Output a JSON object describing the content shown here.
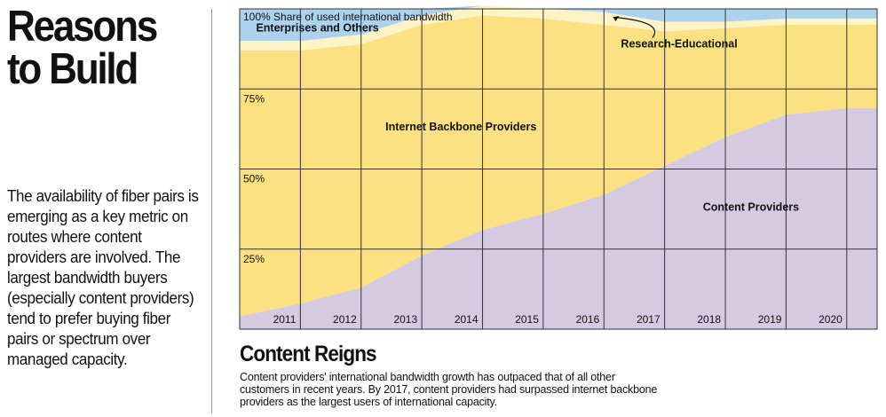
{
  "sidebar": {
    "title": "Reasons\nto Build",
    "body": "The availability of fiber pairs is emerging as a key metric on routes where content providers are involved. The largest bandwidth buyers (especially content providers) tend to prefer buying fiber pairs or spectrum over managed capacity."
  },
  "colors": {
    "content": "#d6cae3",
    "backbone": "#fbe181",
    "research": "#fdf3c4",
    "enterprise": "#acd2ee",
    "grid": "#333333"
  },
  "chart_data": {
    "type": "area",
    "stacked": true,
    "title": "Share of used international bandwidth",
    "x": [
      2011,
      2012,
      2013,
      2014,
      2015,
      2016,
      2017,
      2018,
      2019,
      2020
    ],
    "x_range": [
      2010,
      2020.5
    ],
    "x_label_side": "right-of-column",
    "ylim": [
      0,
      100
    ],
    "y_ticks": [
      {
        "value": 25,
        "label": "25%"
      },
      {
        "value": 50,
        "label": "50%"
      },
      {
        "value": 75,
        "label": "75%"
      },
      {
        "value": 100,
        "label": "100%"
      }
    ],
    "grid": true,
    "series": [
      {
        "name": "Content Providers",
        "color_key": "content",
        "points": [
          [
            2010,
            4
          ],
          [
            2011,
            8
          ],
          [
            2012,
            13
          ],
          [
            2013,
            23
          ],
          [
            2014,
            31
          ],
          [
            2015,
            36
          ],
          [
            2016,
            42
          ],
          [
            2017,
            51
          ],
          [
            2018,
            60
          ],
          [
            2019,
            67
          ],
          [
            2020,
            69
          ]
        ]
      },
      {
        "name": "Internet Backbone Providers",
        "color_key": "backbone",
        "points": [
          [
            2010,
            83
          ],
          [
            2011,
            79
          ],
          [
            2012,
            76
          ],
          [
            2013,
            72
          ],
          [
            2014,
            67
          ],
          [
            2015,
            61
          ],
          [
            2016,
            53
          ],
          [
            2017,
            42
          ],
          [
            2018,
            34
          ],
          [
            2019,
            28
          ],
          [
            2020,
            26
          ]
        ]
      },
      {
        "name": "Research-Educational",
        "color_key": "research",
        "points": [
          [
            2010,
            3
          ],
          [
            2011,
            3
          ],
          [
            2012,
            3
          ],
          [
            2013,
            3
          ],
          [
            2014,
            3
          ],
          [
            2015,
            3
          ],
          [
            2016,
            4
          ],
          [
            2017,
            3
          ],
          [
            2018,
            2
          ],
          [
            2019,
            2
          ],
          [
            2020,
            2
          ]
        ]
      },
      {
        "name": "Enterprises and Others",
        "color_key": "enterprise",
        "points": [
          [
            2010,
            10
          ],
          [
            2011,
            10
          ],
          [
            2012,
            8
          ],
          [
            2013,
            2
          ],
          [
            2014,
            0
          ],
          [
            2015,
            0
          ],
          [
            2016,
            1
          ],
          [
            2017,
            4
          ],
          [
            2018,
            4
          ],
          [
            2019,
            3
          ],
          [
            2020,
            3
          ]
        ]
      }
    ],
    "labels": [
      {
        "series": "Enterprises and Others",
        "x": 2010.27,
        "y": 93
      },
      {
        "series": "Research-Educational",
        "x": 2016.28,
        "y": 88
      },
      {
        "series": "Internet Backbone Providers",
        "x": 2012.4,
        "y": 62
      },
      {
        "series": "Content Providers",
        "x": 2017.63,
        "y": 37
      }
    ]
  },
  "footer": {
    "title": "Content Reigns",
    "caption": "Content providers' international bandwidth growth has outpaced that of all other customers in recent years. By 2017, content providers had surpassed internet backbone providers as the largest users of international capacity."
  }
}
